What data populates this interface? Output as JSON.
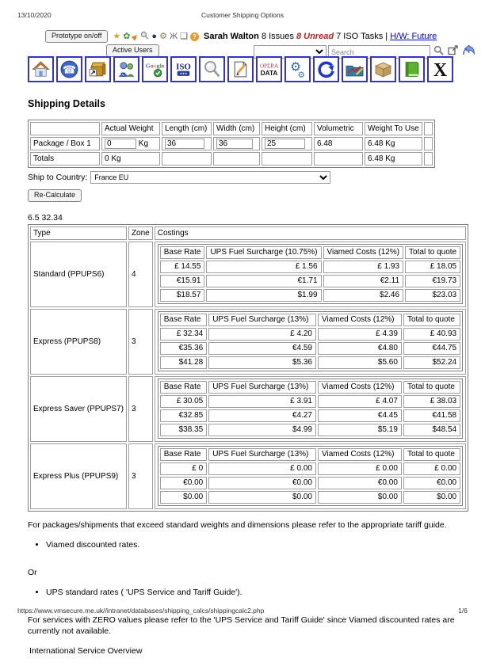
{
  "print_header": {
    "date": "13/10/2020",
    "title": "Customer Shipping Options"
  },
  "print_footer": {
    "url": "https://www.vmsecure.me.uk//intranet/databases/shipping_calcs/shippingcalc2.php",
    "page": "1/6"
  },
  "toolbar": {
    "prototype_button": "Prototype on/off",
    "active_users_button": "Active Users",
    "user_name": "Sarah Walton",
    "issues_text": "8 Issues",
    "unread_text": "8 Unread",
    "iso_tasks_text": "7 ISO Tasks |",
    "hw_link": "H/W: Future",
    "search_placeholder": "Search",
    "small_icons": [
      {
        "name": "star-icon",
        "glyph": "★",
        "color": "#e3a31d"
      },
      {
        "name": "flower-icon",
        "glyph": "✿",
        "color": "#3d9b2f"
      },
      {
        "name": "dart-icon",
        "glyph": "▶",
        "color": "#e07f2a",
        "rotate": true
      },
      {
        "name": "magnifier-icon",
        "svg": "mag"
      },
      {
        "name": "globe-icon",
        "glyph": "●",
        "color": "#25356e"
      },
      {
        "name": "gear-icon",
        "glyph": "⚙",
        "color": "#8a7f4a"
      },
      {
        "name": "derrick-icon",
        "glyph": "Ж",
        "color": "#666666"
      },
      {
        "name": "copy-icon",
        "glyph": "❏",
        "color": "#555555"
      },
      {
        "name": "help-icon",
        "glyph": "?",
        "badge": "#e89b2a",
        "color": "#ffffff"
      }
    ]
  },
  "icon_bar": {
    "items": [
      {
        "name": "home-icon"
      },
      {
        "name": "phone-icon"
      },
      {
        "name": "archive-icon"
      },
      {
        "name": "users-icon"
      },
      {
        "name": "google-icon",
        "label": "Google"
      },
      {
        "name": "iso-icon",
        "label": "ISO"
      },
      {
        "name": "search-big-icon"
      },
      {
        "name": "edit-doc-icon"
      },
      {
        "name": "opera-data-icon",
        "label_top": "OPERA",
        "label_bottom": "DATA"
      },
      {
        "name": "gears-icon"
      },
      {
        "name": "refresh-icon"
      },
      {
        "name": "chart-icon"
      },
      {
        "name": "package-icon"
      },
      {
        "name": "book-icon"
      },
      {
        "name": "close-x-icon",
        "label": "X"
      }
    ]
  },
  "shipping": {
    "heading": "Shipping Details",
    "headers": [
      "",
      "Actual Weight",
      "Length (cm)",
      "Width (cm)",
      "Height (cm)",
      "Volumetric",
      "Weight To Use"
    ],
    "package_row": {
      "label": "Package / Box 1",
      "actual_weight_value": "0",
      "actual_weight_unit": "Kg",
      "length_value": "36",
      "width_value": "36",
      "height_value": "25",
      "volumetric": "6.48",
      "weight_to_use": "6.48 Kg"
    },
    "totals_row": {
      "label": "Totals",
      "actual_weight": "0 Kg",
      "weight_to_use": "6.48 Kg"
    },
    "ship_to_label": "Ship to Country:",
    "ship_to_value": "France EU",
    "recalculate_button": "Re-Calculate",
    "debug_text": "6.5 32.34"
  },
  "costings": {
    "col_type": "Type",
    "col_zone": "Zone",
    "col_costings": "Costings",
    "services": [
      {
        "type": "Standard (PPUPS6)",
        "zone": "4",
        "columns": [
          "Base Rate",
          "UPS Fuel Surcharge (10.75%)",
          "Viamed Costs (12%)",
          "Total to quote"
        ],
        "rows": [
          [
            "£ 14.55",
            "£ 1.56",
            "£ 1.93",
            "£ 18.05"
          ],
          [
            "€15.91",
            "€1.71",
            "€2.11",
            "€19.73"
          ],
          [
            "$18.57",
            "$1.99",
            "$2.46",
            "$23.03"
          ]
        ]
      },
      {
        "type": "Express (PPUPS8)",
        "zone": "3",
        "columns": [
          "Base Rate",
          "UPS Fuel Surcharge (13%)",
          "Viamed Costs (12%)",
          "Total to quote"
        ],
        "rows": [
          [
            "£ 32.34",
            "£ 4.20",
            "£ 4.39",
            "£ 40.93"
          ],
          [
            "€35.36",
            "€4.59",
            "€4.80",
            "€44.75"
          ],
          [
            "$41.28",
            "$5.36",
            "$5.60",
            "$52.24"
          ]
        ]
      },
      {
        "type": "Express Saver (PPUPS7)",
        "zone": "3",
        "columns": [
          "Base Rate",
          "UPS Fuel Surcharge (13%)",
          "Viamed Costs (12%)",
          "Total to quote"
        ],
        "rows": [
          [
            "£ 30.05",
            "£ 3.91",
            "£ 4.07",
            "£ 38.03"
          ],
          [
            "€32.85",
            "€4.27",
            "€4.45",
            "€41.58"
          ],
          [
            "$38.35",
            "$4.99",
            "$5.19",
            "$48.54"
          ]
        ]
      },
      {
        "type": "Express Plus (PPUPS9)",
        "zone": "3",
        "columns": [
          "Base Rate",
          "UPS Fuel Surcharge (13%)",
          "Viamed Costs (12%)",
          "Total to quote"
        ],
        "rows": [
          [
            "£ 0",
            "£ 0.00",
            "£ 0.00",
            "£ 0.00"
          ],
          [
            "€0.00",
            "€0.00",
            "€0.00",
            "€0.00"
          ],
          [
            "$0.00",
            "$0.00",
            "$0.00",
            "$0.00"
          ]
        ]
      }
    ]
  },
  "notes": {
    "paragraph1": "For packages/shipments that exceed standard weights and dimensions please refer to the appropriate tariff guide.",
    "bullet1": "Viamed discounted rates.",
    "or_text": "Or",
    "bullet2": "UPS standard rates ( 'UPS Service and Tariff Guide').",
    "paragraph2": "For services with ZERO values please refer to the 'UPS Service and Tariff Guide' since Viamed discounted rates are currently not available.",
    "paragraph3": "International Service Overview"
  }
}
